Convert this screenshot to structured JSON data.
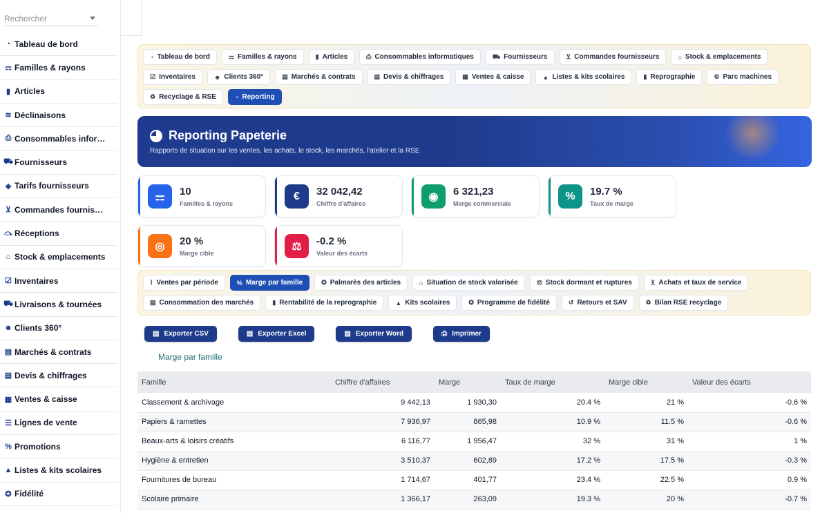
{
  "sidebar": {
    "search_placeholder": "Rechercher",
    "items": [
      {
        "label": "Tableau de bord",
        "icon": "dashboard-icon",
        "glyph": "◔"
      },
      {
        "label": "Familles & rayons",
        "icon": "sitemap-icon",
        "glyph": "⚎"
      },
      {
        "label": "Articles",
        "icon": "book-icon",
        "glyph": "▮"
      },
      {
        "label": "Déclinaisons",
        "icon": "layers-icon",
        "glyph": "≋"
      },
      {
        "label": "Consommables infor…",
        "icon": "printer-icon",
        "glyph": "⎙"
      },
      {
        "label": "Fournisseurs",
        "icon": "truck-icon",
        "glyph": "⛟"
      },
      {
        "label": "Tarifs fournisseurs",
        "icon": "tag-icon",
        "glyph": "◈"
      },
      {
        "label": "Commandes fournis…",
        "icon": "cart-icon",
        "glyph": "⊻"
      },
      {
        "label": "Réceptions",
        "icon": "dolly-icon",
        "glyph": "⤼"
      },
      {
        "label": "Stock & emplacements",
        "icon": "warehouse-icon",
        "glyph": "⌂"
      },
      {
        "label": "Inventaires",
        "icon": "clipboard-check-icon",
        "glyph": "☑"
      },
      {
        "label": "Livraisons & tournées",
        "icon": "delivery-truck-icon",
        "glyph": "⛟"
      },
      {
        "label": "Clients 360°",
        "icon": "users-icon",
        "glyph": "☻"
      },
      {
        "label": "Marchés & contrats",
        "icon": "contract-icon",
        "glyph": "▤"
      },
      {
        "label": "Devis & chiffrages",
        "icon": "quote-icon",
        "glyph": "▤"
      },
      {
        "label": "Ventes & caisse",
        "icon": "cash-register-icon",
        "glyph": "▦"
      },
      {
        "label": "Lignes de vente",
        "icon": "list-icon",
        "glyph": "☰"
      },
      {
        "label": "Promotions",
        "icon": "percent-icon",
        "glyph": "%"
      },
      {
        "label": "Listes & kits scolaires",
        "icon": "graduation-cap-icon",
        "glyph": "▲"
      },
      {
        "label": "Fidélité",
        "icon": "award-icon",
        "glyph": "✪"
      }
    ]
  },
  "top_tabs": [
    {
      "label": "Tableau de bord",
      "icon": "dashboard-icon",
      "glyph": "◔",
      "active": false
    },
    {
      "label": "Familles & rayons",
      "icon": "sitemap-icon",
      "glyph": "⚎",
      "active": false
    },
    {
      "label": "Articles",
      "icon": "book-icon",
      "glyph": "▮",
      "active": false
    },
    {
      "label": "Consommables informatiques",
      "icon": "printer-icon",
      "glyph": "⎙",
      "active": false
    },
    {
      "label": "Fournisseurs",
      "icon": "truck-icon",
      "glyph": "⛟",
      "active": false
    },
    {
      "label": "Commandes fournisseurs",
      "icon": "cart-icon",
      "glyph": "⊻",
      "active": false
    },
    {
      "label": "Stock & emplacements",
      "icon": "warehouse-icon",
      "glyph": "⌂",
      "active": false
    },
    {
      "label": "Inventaires",
      "icon": "clipboard-check-icon",
      "glyph": "☑",
      "active": false
    },
    {
      "label": "Clients 360°",
      "icon": "users-icon",
      "glyph": "☻",
      "active": false
    },
    {
      "label": "Marchés & contrats",
      "icon": "contract-icon",
      "glyph": "▤",
      "active": false
    },
    {
      "label": "Devis & chiffrages",
      "icon": "quote-icon",
      "glyph": "▤",
      "active": false
    },
    {
      "label": "Ventes & caisse",
      "icon": "cash-register-icon",
      "glyph": "▦",
      "active": false
    },
    {
      "label": "Listes & kits scolaires",
      "icon": "graduation-cap-icon",
      "glyph": "▲",
      "active": false
    },
    {
      "label": "Reprographie",
      "icon": "copy-icon",
      "glyph": "▮",
      "active": false
    },
    {
      "label": "Parc machines",
      "icon": "cogs-icon",
      "glyph": "⚙",
      "active": false
    },
    {
      "label": "Recyclage & RSE",
      "icon": "recycle-icon",
      "glyph": "♻",
      "active": false
    },
    {
      "label": "Reporting",
      "icon": "chart-pie-icon",
      "glyph": "◔",
      "active": true
    }
  ],
  "hero": {
    "title": "Reporting Papeterie",
    "subtitle": "Rapports de situation sur les ventes, les achats, le stock, les marchés, l'atelier et la RSE"
  },
  "kpis": [
    {
      "value": "10",
      "label": "Familles & rayons",
      "icon": "sitemap-icon",
      "glyph": "⚎",
      "color": "#2563eb",
      "bar": "#2563eb"
    },
    {
      "value": "32 042,42",
      "label": "Chiffre d'affaires",
      "icon": "euro-icon",
      "glyph": "€",
      "color": "#1e3a8a",
      "bar": "#1e3a8a"
    },
    {
      "value": "6 321,23",
      "label": "Marge commerciale",
      "icon": "coins-icon",
      "glyph": "◉",
      "color": "#0f9d6b",
      "bar": "#0f9d6b"
    },
    {
      "value": "19.7 %",
      "label": "Taux de marge",
      "icon": "percent-icon",
      "glyph": "%",
      "color": "#0d9488",
      "bar": "#0d9488"
    },
    {
      "value": "20 %",
      "label": "Marge cible",
      "icon": "target-icon",
      "glyph": "◎",
      "color": "#f97316",
      "bar": "#f97316"
    },
    {
      "value": "-0.2 %",
      "label": "Valeur des écarts",
      "icon": "balance-scale-icon",
      "glyph": "⚖",
      "color": "#e11d48",
      "bar": "#e11d48"
    }
  ],
  "report_tabs": [
    {
      "label": "Ventes par période",
      "icon": "chart-line-icon",
      "glyph": "⌇",
      "active": false
    },
    {
      "label": "Marge par famille",
      "icon": "percent-icon",
      "glyph": "%",
      "active": true
    },
    {
      "label": "Palmarès des articles",
      "icon": "award-icon",
      "glyph": "✪",
      "active": false
    },
    {
      "label": "Situation de stock valorisée",
      "icon": "warehouse-icon",
      "glyph": "⌂",
      "active": false
    },
    {
      "label": "Stock dormant et ruptures",
      "icon": "balance-scale-icon",
      "glyph": "⚖",
      "active": false
    },
    {
      "label": "Achats et taux de service",
      "icon": "cart-icon",
      "glyph": "⊻",
      "active": false
    },
    {
      "label": "Consommation des marchés",
      "icon": "contract-icon",
      "glyph": "▤",
      "active": false
    },
    {
      "label": "Rentabilité de la reprographie",
      "icon": "copy-icon",
      "glyph": "▮",
      "active": false
    },
    {
      "label": "Kits scolaires",
      "icon": "graduation-cap-icon",
      "glyph": "▲",
      "active": false
    },
    {
      "label": "Programme de fidélité",
      "icon": "award-icon",
      "glyph": "✪",
      "active": false
    },
    {
      "label": "Retours et SAV",
      "icon": "undo-icon",
      "glyph": "↺",
      "active": false
    },
    {
      "label": "Bilan RSE recyclage",
      "icon": "recycle-icon",
      "glyph": "♻",
      "active": false
    }
  ],
  "export_buttons": [
    {
      "label": "Exporter CSV",
      "icon": "file-csv-icon",
      "glyph": "▤"
    },
    {
      "label": "Exporter Excel",
      "icon": "file-excel-icon",
      "glyph": "▤"
    },
    {
      "label": "Exporter Word",
      "icon": "file-word-icon",
      "glyph": "▤"
    },
    {
      "label": "Imprimer",
      "icon": "print-icon",
      "glyph": "⎙"
    }
  ],
  "report": {
    "title": "Marge par famille",
    "columns": [
      "Famille",
      "Chiffre d'affaires",
      "Marge",
      "Taux de marge",
      "Marge cible",
      "Valeur des écarts"
    ],
    "rows": [
      [
        "Classement & archivage",
        "9 442,13",
        "1 930,30",
        "20.4 %",
        "21 %",
        "-0.6 %"
      ],
      [
        "Papiers & ramettes",
        "7 936,97",
        "865,98",
        "10.9 %",
        "11.5 %",
        "-0.6 %"
      ],
      [
        "Beaux-arts & loisirs créatifs",
        "6 116,77",
        "1 956,47",
        "32 %",
        "31 %",
        "1 %"
      ],
      [
        "Hygiène & entretien",
        "3 510,37",
        "602,89",
        "17.2 %",
        "17.5 %",
        "-0.3 %"
      ],
      [
        "Fournitures de bureau",
        "1 714,67",
        "401,77",
        "23.4 %",
        "22.5 %",
        "0.9 %"
      ],
      [
        "Scolaire primaire",
        "1 366,17",
        "263,09",
        "19.3 %",
        "20 %",
        "-0.7 %"
      ]
    ]
  }
}
